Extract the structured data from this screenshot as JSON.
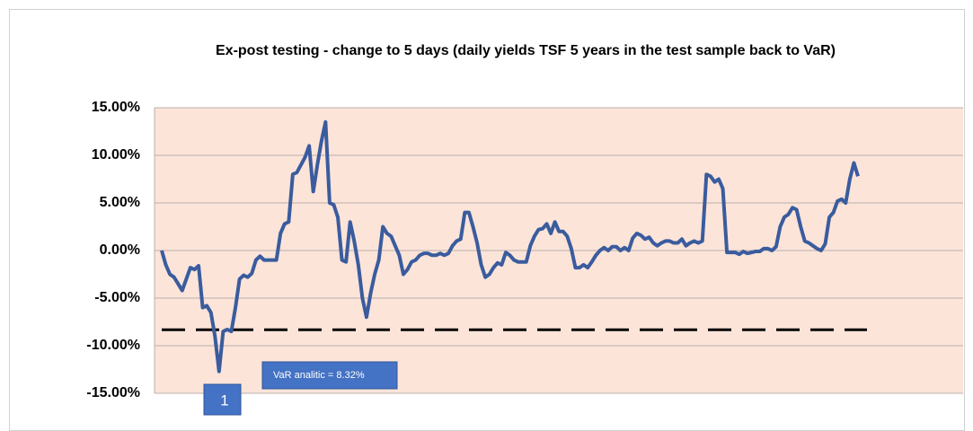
{
  "chart_data": {
    "type": "line",
    "title": "Ex-post testing - change to 5 days (daily yields TSF 5 years in the test sample back to VaR)",
    "color": "#3a5c9e",
    "plot_background": "#fce4d9",
    "grid": true,
    "ylim": [
      -15,
      15
    ],
    "yticks": [
      {
        "value": -15,
        "label": "-15.00%"
      },
      {
        "value": -10,
        "label": "-10.00%"
      },
      {
        "value": -5,
        "label": "-5.00%"
      },
      {
        "value": 0,
        "label": "0.00%"
      },
      {
        "value": 5,
        "label": "5.00%"
      },
      {
        "value": 10,
        "label": "10.00%"
      },
      {
        "value": 15,
        "label": "15.00%"
      }
    ],
    "values": [
      0,
      -1.5,
      -2.5,
      -2.8,
      -3.5,
      -4.2,
      -3.0,
      -1.8,
      -2.0,
      -1.6,
      -6.0,
      -5.8,
      -6.5,
      -9.0,
      -12.7,
      -8.5,
      -8.3,
      -8.5,
      -6.0,
      -3.0,
      -2.6,
      -2.8,
      -2.4,
      -1.0,
      -0.6,
      -1.0,
      -1.0,
      -1.0,
      -1.0,
      1.8,
      2.8,
      3.0,
      8.0,
      8.2,
      9.0,
      9.8,
      11.0,
      6.2,
      9.0,
      11.5,
      13.5,
      5.0,
      4.8,
      3.5,
      -1.0,
      -1.2,
      3.0,
      1.0,
      -1.5,
      -5.0,
      -7.0,
      -4.5,
      -2.5,
      -1.0,
      2.5,
      1.8,
      1.5,
      0.5,
      -0.5,
      -2.5,
      -2.0,
      -1.2,
      -1.0,
      -0.5,
      -0.3,
      -0.3,
      -0.5,
      -0.5,
      -0.3,
      -0.5,
      -0.3,
      0.5,
      1.0,
      1.2,
      4.0,
      4.0,
      2.5,
      0.8,
      -1.5,
      -2.8,
      -2.5,
      -1.8,
      -1.3,
      -1.5,
      -0.2,
      -0.5,
      -1.0,
      -1.2,
      -1.2,
      -1.2,
      0.5,
      1.5,
      2.2,
      2.3,
      2.8,
      1.8,
      3.0,
      2.0,
      2.0,
      1.5,
      0.2,
      -1.8,
      -1.8,
      -1.5,
      -1.8,
      -1.2,
      -0.5,
      0.0,
      0.3,
      0.0,
      0.4,
      0.4,
      0.0,
      0.3,
      0.0,
      1.3,
      1.8,
      1.6,
      1.2,
      1.4,
      0.8,
      0.5,
      0.8,
      1.0,
      1.0,
      0.8,
      0.8,
      1.2,
      0.5,
      0.8,
      1.0,
      0.8,
      1.0,
      8.0,
      7.8,
      7.2,
      7.5,
      6.5,
      -0.2,
      -0.2,
      -0.2,
      -0.4,
      -0.1,
      -0.3,
      -0.2,
      -0.1,
      -0.1,
      0.2,
      0.2,
      0.0,
      0.4,
      2.5,
      3.5,
      3.8,
      4.5,
      4.3,
      2.5,
      1.0,
      0.8,
      0.5,
      0.2,
      0.0,
      0.7,
      3.5,
      4.0,
      5.2,
      5.4,
      5.0,
      7.5,
      9.2,
      7.8
    ],
    "var_line": -8.32,
    "var_label": "VaR analitic = 8.32%",
    "marker_label": "1"
  }
}
